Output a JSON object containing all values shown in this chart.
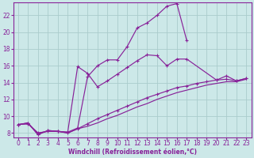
{
  "background_color": "#cce8e8",
  "grid_color": "#aacccc",
  "line_color": "#882299",
  "xlabel": "Windchill (Refroidissement éolien,°C)",
  "xlabel_color": "#882299",
  "tick_color": "#882299",
  "xlim_min": -0.5,
  "xlim_max": 23.5,
  "ylim_min": 7.5,
  "ylim_max": 23.5,
  "yticks": [
    8,
    10,
    12,
    14,
    16,
    18,
    20,
    22
  ],
  "xticks": [
    0,
    1,
    2,
    3,
    4,
    5,
    6,
    7,
    8,
    9,
    10,
    11,
    12,
    13,
    14,
    15,
    16,
    17,
    18,
    19,
    20,
    21,
    22,
    23
  ],
  "line1_x": [
    0,
    1,
    2,
    3,
    4,
    5,
    6,
    7,
    8,
    9,
    10,
    11,
    12,
    13,
    14,
    15,
    16,
    17
  ],
  "line1_y": [
    9.0,
    9.2,
    7.8,
    8.3,
    8.2,
    8.1,
    8.6,
    14.7,
    16.0,
    16.7,
    16.7,
    18.3,
    20.5,
    21.1,
    22.0,
    23.1,
    23.4,
    19.0
  ],
  "line2_x": [
    0,
    1,
    2,
    3,
    4,
    5,
    6,
    7,
    8,
    9,
    10,
    11,
    12,
    13,
    14,
    15,
    16,
    17,
    20,
    21,
    22,
    23
  ],
  "line2_y": [
    9.0,
    9.2,
    7.8,
    8.3,
    8.2,
    8.1,
    15.9,
    15.1,
    13.5,
    14.2,
    15.0,
    15.8,
    16.6,
    17.3,
    17.2,
    16.0,
    16.8,
    16.8,
    14.3,
    14.8,
    14.2,
    14.5
  ],
  "line3_x": [
    0,
    1,
    2,
    3,
    4,
    5,
    6,
    7,
    8,
    9,
    10,
    11,
    12,
    13,
    14,
    15,
    16,
    17,
    18,
    19,
    20,
    21,
    22,
    23
  ],
  "line3_y": [
    9.0,
    9.1,
    8.0,
    8.2,
    8.2,
    8.0,
    8.5,
    9.1,
    9.7,
    10.2,
    10.7,
    11.2,
    11.7,
    12.2,
    12.6,
    13.0,
    13.4,
    13.6,
    13.9,
    14.1,
    14.3,
    14.4,
    14.2,
    14.5
  ],
  "line4_x": [
    0,
    1,
    2,
    3,
    4,
    5,
    6,
    7,
    8,
    9,
    10,
    11,
    12,
    13,
    14,
    15,
    16,
    17,
    18,
    19,
    20,
    21,
    22,
    23
  ],
  "line4_y": [
    9.0,
    9.1,
    8.0,
    8.2,
    8.2,
    8.0,
    8.5,
    8.8,
    9.2,
    9.7,
    10.1,
    10.6,
    11.1,
    11.5,
    12.0,
    12.4,
    12.8,
    13.1,
    13.4,
    13.7,
    13.9,
    14.1,
    14.1,
    14.4
  ]
}
